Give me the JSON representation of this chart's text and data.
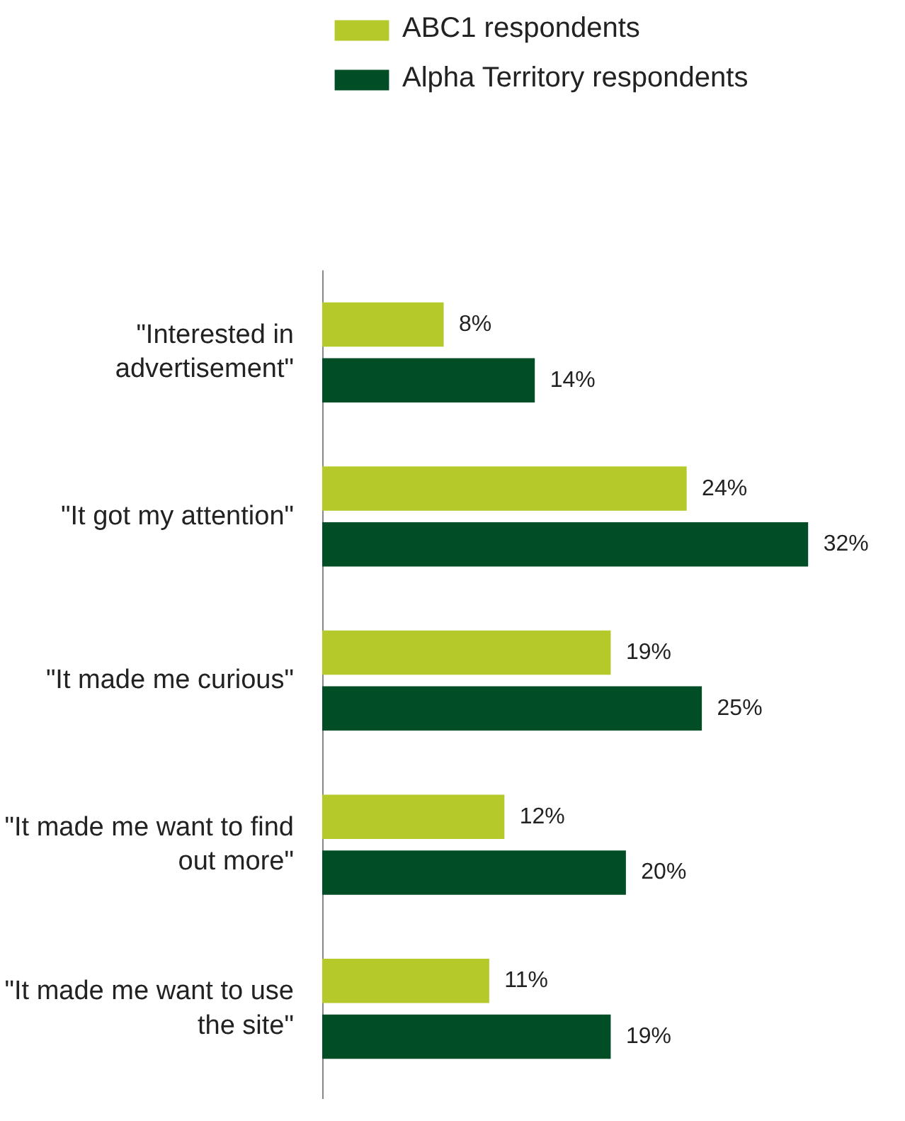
{
  "chart_data": {
    "type": "bar",
    "orientation": "horizontal",
    "categories": [
      "\"Interested in advertisement\"",
      "\"It got my attention\"",
      "\"It made me curious\"",
      "\"It made me want to find out more\"",
      "\"It made me want to use the site\""
    ],
    "series": [
      {
        "name": "ABC1 respondents",
        "color": "#b5c92b",
        "values": [
          8,
          24,
          19,
          12,
          11
        ],
        "value_labels": [
          "8%",
          "24%",
          "19%",
          "12%",
          "11%"
        ]
      },
      {
        "name": "Alpha Territory respondents",
        "color": "#004d26",
        "values": [
          14,
          32,
          25,
          20,
          19
        ],
        "value_labels": [
          "14%",
          "32%",
          "25%",
          "20%",
          "19%"
        ]
      }
    ],
    "tick_labels": "y",
    "grid": false,
    "legend": "top left"
  }
}
